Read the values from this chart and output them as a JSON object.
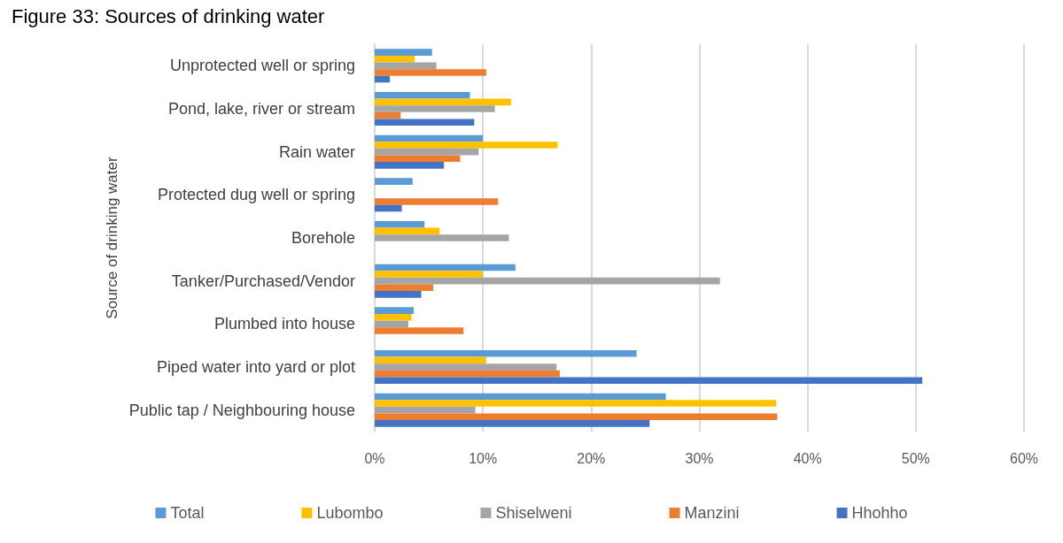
{
  "chart_data": {
    "type": "bar",
    "orientation": "horizontal",
    "title": "Figure 33: Sources of drinking water",
    "ylabel": "Source of drinking water",
    "categories": [
      "Unprotected well or spring",
      "Pond, lake, river or stream",
      "Rain water",
      "Protected dug well or spring",
      "Borehole",
      "Tanker/Purchased/Vendor",
      "Plumbed into house",
      "Piped water into yard or plot",
      "Public tap / Neighbouring house"
    ],
    "series": [
      {
        "name": "Total",
        "color": "#5b9bd5",
        "values": [
          5.3,
          8.8,
          10.0,
          3.5,
          4.6,
          13.0,
          3.6,
          24.2,
          26.9
        ]
      },
      {
        "name": "Lubombo",
        "color": "#ffc000",
        "values": [
          3.7,
          12.6,
          16.9,
          null,
          6.0,
          10.0,
          3.4,
          10.3,
          37.1
        ]
      },
      {
        "name": "Shiselweni",
        "color": "#a5a5a5",
        "values": [
          5.7,
          11.1,
          9.6,
          null,
          12.4,
          31.9,
          3.1,
          16.8,
          9.3
        ]
      },
      {
        "name": "Manzini",
        "color": "#ed7d31",
        "values": [
          10.3,
          2.4,
          7.9,
          11.4,
          null,
          5.4,
          8.2,
          17.1,
          37.2
        ]
      },
      {
        "name": "Hhohho",
        "color": "#4472c4",
        "values": [
          1.4,
          9.2,
          6.4,
          2.5,
          null,
          4.3,
          null,
          50.6,
          25.4
        ]
      }
    ],
    "xlim": [
      0,
      60
    ],
    "xticks": [
      {
        "value": 0,
        "label": "0%"
      },
      {
        "value": 10,
        "label": "10%"
      },
      {
        "value": 20,
        "label": "20%"
      },
      {
        "value": 30,
        "label": "30%"
      },
      {
        "value": 40,
        "label": "40%"
      },
      {
        "value": 50,
        "label": "50%"
      },
      {
        "value": 60,
        "label": "60%"
      }
    ],
    "grid": "x",
    "legend": "bottom"
  }
}
